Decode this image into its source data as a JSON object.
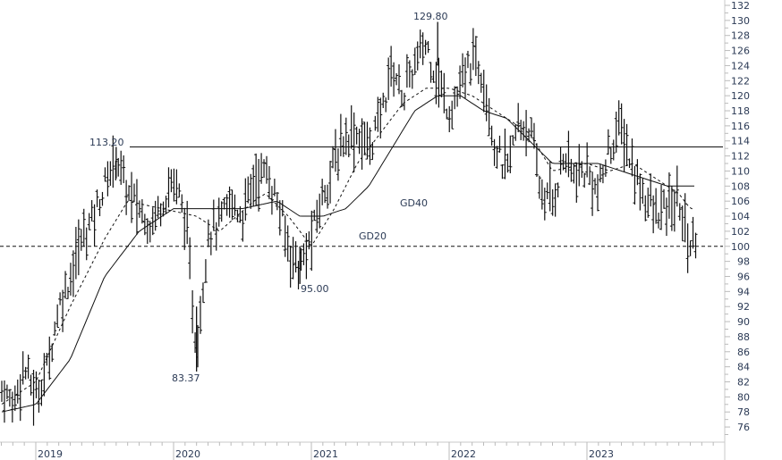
{
  "chart_data": {
    "type": "line",
    "subtype": "ohlc-bar-chart-with-moving-averages",
    "title": "",
    "xlabel": "",
    "ylabel": "",
    "ylim": [
      74,
      133
    ],
    "y_ticks": [
      132,
      130,
      128,
      126,
      124,
      122,
      120,
      118,
      116,
      114,
      112,
      110,
      108,
      106,
      104,
      102,
      100,
      98,
      96,
      94,
      92,
      90,
      88,
      86,
      84,
      82,
      80,
      78,
      76
    ],
    "x_ticks": [
      "2019",
      "2020",
      "2021",
      "2022",
      "2023"
    ],
    "grid": false,
    "annotations": [
      {
        "text": "113.20",
        "kind": "high",
        "date": "2019-08"
      },
      {
        "text": "129.80",
        "kind": "high",
        "date": "2021-12"
      },
      {
        "text": "83.37",
        "kind": "low",
        "date": "2020-03"
      },
      {
        "text": "95.00",
        "kind": "low",
        "date": "2020-12"
      },
      {
        "text": "GD40",
        "kind": "series-label"
      },
      {
        "text": "GD20",
        "kind": "series-label"
      }
    ],
    "horizontal_lines": [
      {
        "value": 113.2,
        "style": "solid"
      },
      {
        "value": 100,
        "style": "dashed"
      }
    ],
    "series": [
      {
        "name": "Price (weekly OHLC)",
        "keypoints": [
          [
            "2018-10",
            81
          ],
          [
            "2018-11",
            79
          ],
          [
            "2018-12",
            84
          ],
          [
            "2019-01",
            80
          ],
          [
            "2019-02",
            84
          ],
          [
            "2019-03",
            92
          ],
          [
            "2019-04",
            96
          ],
          [
            "2019-05",
            101
          ],
          [
            "2019-06",
            104
          ],
          [
            "2019-07",
            108
          ],
          [
            "2019-08",
            112
          ],
          [
            "2019-09",
            107
          ],
          [
            "2019-10",
            105
          ],
          [
            "2019-11",
            103
          ],
          [
            "2019-12",
            106
          ],
          [
            "2020-01",
            109
          ],
          [
            "2020-02",
            104
          ],
          [
            "2020-03",
            86
          ],
          [
            "2020-04",
            102
          ],
          [
            "2020-05",
            103
          ],
          [
            "2020-06",
            106
          ],
          [
            "2020-07",
            104
          ],
          [
            "2020-08",
            109
          ],
          [
            "2020-09",
            110
          ],
          [
            "2020-10",
            106
          ],
          [
            "2020-11",
            100
          ],
          [
            "2020-12",
            97
          ],
          [
            "2021-01",
            101
          ],
          [
            "2021-02",
            107
          ],
          [
            "2021-03",
            111
          ],
          [
            "2021-04",
            115
          ],
          [
            "2021-05",
            115
          ],
          [
            "2021-06",
            113
          ],
          [
            "2021-07",
            117
          ],
          [
            "2021-08",
            124
          ],
          [
            "2021-09",
            120
          ],
          [
            "2021-10",
            124
          ],
          [
            "2021-11",
            127
          ],
          [
            "2021-12",
            122
          ],
          [
            "2022-01",
            118
          ],
          [
            "2022-02",
            121
          ],
          [
            "2022-03",
            125
          ],
          [
            "2022-04",
            123
          ],
          [
            "2022-05",
            113
          ],
          [
            "2022-06",
            110
          ],
          [
            "2022-07",
            116
          ],
          [
            "2022-08",
            116
          ],
          [
            "2022-09",
            107
          ],
          [
            "2022-10",
            106
          ],
          [
            "2022-11",
            112
          ],
          [
            "2022-12",
            109
          ],
          [
            "2023-01",
            110
          ],
          [
            "2023-02",
            107
          ],
          [
            "2023-03",
            113
          ],
          [
            "2023-04",
            116
          ],
          [
            "2023-05",
            110
          ],
          [
            "2023-06",
            107
          ],
          [
            "2023-07",
            104
          ],
          [
            "2023-08",
            105
          ],
          [
            "2023-09",
            106
          ],
          [
            "2023-10",
            100
          ],
          [
            "2023-11",
            103
          ]
        ]
      },
      {
        "name": "GD20",
        "style": "dashed",
        "keypoints": [
          [
            "2018-10",
            79
          ],
          [
            "2019-01",
            82
          ],
          [
            "2019-04",
            92
          ],
          [
            "2019-07",
            101
          ],
          [
            "2019-09",
            106
          ],
          [
            "2019-12",
            105
          ],
          [
            "2020-03",
            104
          ],
          [
            "2020-05",
            102
          ],
          [
            "2020-08",
            106
          ],
          [
            "2020-09",
            107
          ],
          [
            "2020-11",
            104
          ],
          [
            "2021-01",
            100
          ],
          [
            "2021-03",
            105
          ],
          [
            "2021-05",
            111
          ],
          [
            "2021-07",
            115
          ],
          [
            "2021-09",
            119
          ],
          [
            "2021-11",
            121
          ],
          [
            "2022-01",
            121
          ],
          [
            "2022-03",
            120
          ],
          [
            "2022-05",
            118
          ],
          [
            "2022-08",
            115
          ],
          [
            "2022-10",
            110
          ],
          [
            "2023-01",
            111
          ],
          [
            "2023-03",
            110
          ],
          [
            "2023-05",
            111
          ],
          [
            "2023-07",
            109
          ],
          [
            "2023-09",
            107
          ],
          [
            "2023-10",
            105
          ]
        ]
      },
      {
        "name": "GD40",
        "style": "solid",
        "keypoints": [
          [
            "2018-10",
            78
          ],
          [
            "2019-01",
            79
          ],
          [
            "2019-04",
            85
          ],
          [
            "2019-07",
            96
          ],
          [
            "2019-10",
            102
          ],
          [
            "2020-01",
            105
          ],
          [
            "2020-04",
            105
          ],
          [
            "2020-07",
            105
          ],
          [
            "2020-10",
            106
          ],
          [
            "2020-12",
            104
          ],
          [
            "2021-02",
            104
          ],
          [
            "2021-04",
            105
          ],
          [
            "2021-06",
            108
          ],
          [
            "2021-08",
            113
          ],
          [
            "2021-10",
            118
          ],
          [
            "2021-12",
            120
          ],
          [
            "2022-02",
            120
          ],
          [
            "2022-04",
            118
          ],
          [
            "2022-06",
            117
          ],
          [
            "2022-08",
            114
          ],
          [
            "2022-10",
            111
          ],
          [
            "2022-12",
            111
          ],
          [
            "2023-02",
            111
          ],
          [
            "2023-04",
            110
          ],
          [
            "2023-06",
            109
          ],
          [
            "2023-08",
            108
          ],
          [
            "2023-10",
            108
          ]
        ]
      }
    ]
  }
}
